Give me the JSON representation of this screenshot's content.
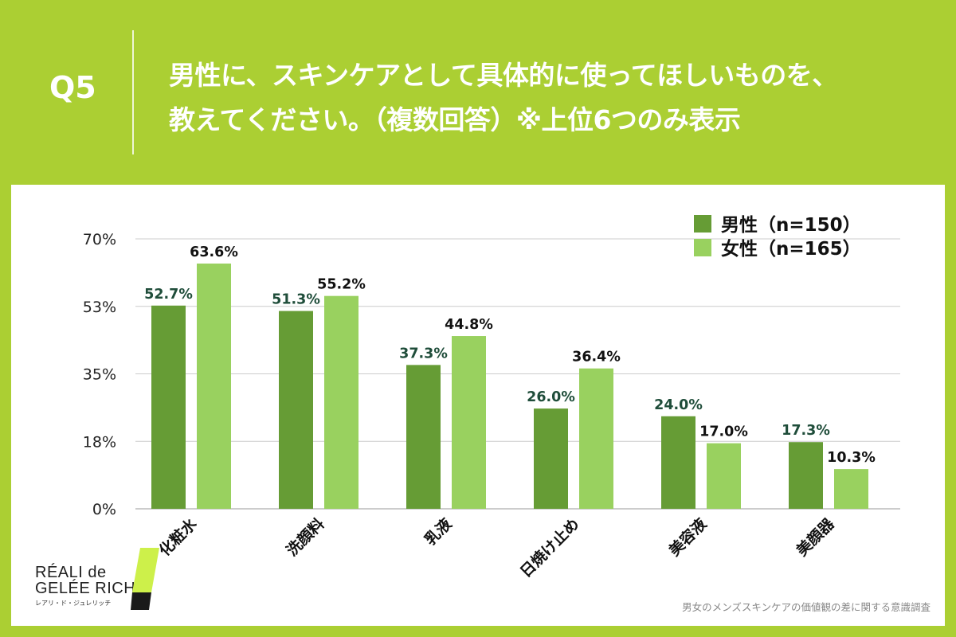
{
  "header": {
    "q_label": "Q5",
    "question_line1": "男性に、スキンケアとして具体的に使ってほしいものを、",
    "question_line2": "教えてください。（複数回答）※上位6つのみ表示"
  },
  "brand": {
    "line1": "RÉALI de",
    "line2": "GELÉE RICH",
    "registered": "®",
    "sub": "レアリ・ド・ジュレリッチ"
  },
  "source_note": "男女のメンズスキンケアの価値観の差に関する意識調査",
  "colors": {
    "background": "#abcf33",
    "male": "#669c35",
    "female": "#99d15f",
    "male_label": "#1f4d3a",
    "female_label": "#111111",
    "grid": "#cccccc"
  },
  "chart_data": {
    "type": "bar",
    "categories": [
      "化粧水",
      "洗顔料",
      "乳液",
      "日焼け止め",
      "美容液",
      "美顔器"
    ],
    "series": [
      {
        "name": "男性（n=150）",
        "values": [
          52.7,
          51.3,
          37.3,
          26.0,
          24.0,
          17.3
        ]
      },
      {
        "name": "女性（n=165）",
        "values": [
          63.6,
          55.2,
          44.8,
          36.4,
          17.0,
          10.3
        ]
      }
    ],
    "value_labels": [
      [
        "52.7%",
        "51.3%",
        "37.3%",
        "26.0%",
        "24.0%",
        "17.3%"
      ],
      [
        "63.6%",
        "55.2%",
        "44.8%",
        "36.4%",
        "17.0%",
        "10.3%"
      ]
    ],
    "yticks": [
      0,
      17.5,
      35,
      52.5,
      70
    ],
    "ytick_labels": [
      "0%",
      "18%",
      "35%",
      "53%",
      "70%"
    ],
    "ylim": [
      0,
      70
    ],
    "grid": true,
    "legend_position": "top-right"
  }
}
